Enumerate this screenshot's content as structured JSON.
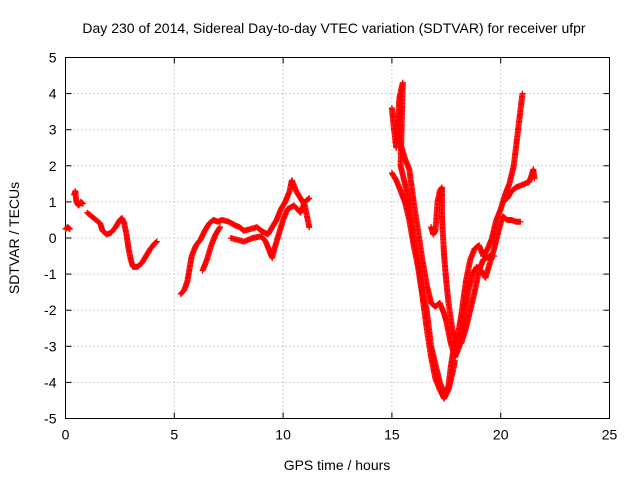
{
  "chart_data": {
    "type": "scatter",
    "title": "Day 230 of 2014, Sidereal Day-to-day VTEC variation (SDTVAR) for receiver ufpr",
    "xlabel": "GPS time / hours",
    "ylabel": "SDTVAR / TECUs",
    "xlim": [
      0,
      25
    ],
    "ylim": [
      -5,
      5
    ],
    "xticks": [
      "0",
      "5",
      "10",
      "15",
      "20",
      "25"
    ],
    "yticks": [
      "-5",
      "-4",
      "-3",
      "-2",
      "-1",
      "0",
      "1",
      "2",
      "3",
      "4",
      "5"
    ],
    "grid": true,
    "marker": "+",
    "color": "#ff0000",
    "series": [
      {
        "name": "SDTVAR",
        "segments": [
          [
            [
              0.0,
              0.25
            ],
            [
              0.1,
              0.3
            ],
            [
              0.2,
              0.25
            ]
          ],
          [
            [
              0.4,
              1.2
            ],
            [
              0.45,
              1.3
            ],
            [
              0.5,
              1.0
            ],
            [
              0.6,
              0.9
            ],
            [
              0.7,
              1.0
            ],
            [
              0.8,
              0.95
            ]
          ],
          [
            [
              1.0,
              0.7
            ],
            [
              1.2,
              0.6
            ],
            [
              1.4,
              0.5
            ],
            [
              1.6,
              0.4
            ],
            [
              1.7,
              0.2
            ],
            [
              1.9,
              0.1
            ],
            [
              2.1,
              0.15
            ],
            [
              2.3,
              0.3
            ],
            [
              2.5,
              0.5
            ],
            [
              2.6,
              0.55
            ],
            [
              2.7,
              0.4
            ],
            [
              2.8,
              0.1
            ],
            [
              2.9,
              -0.3
            ],
            [
              3.0,
              -0.6
            ],
            [
              3.1,
              -0.8
            ],
            [
              3.3,
              -0.8
            ],
            [
              3.5,
              -0.7
            ],
            [
              3.7,
              -0.5
            ],
            [
              3.9,
              -0.3
            ],
            [
              4.1,
              -0.15
            ],
            [
              4.2,
              -0.1
            ]
          ],
          [
            [
              5.3,
              -1.55
            ],
            [
              5.45,
              -1.45
            ],
            [
              5.6,
              -1.2
            ],
            [
              5.8,
              -0.5
            ],
            [
              6.0,
              -0.2
            ],
            [
              6.2,
              -0.05
            ],
            [
              6.4,
              0.2
            ],
            [
              6.6,
              0.4
            ],
            [
              6.8,
              0.5
            ],
            [
              7.0,
              0.45
            ],
            [
              7.2,
              0.5
            ],
            [
              7.5,
              0.45
            ],
            [
              7.8,
              0.35
            ],
            [
              8.0,
              0.3
            ],
            [
              8.2,
              0.2
            ],
            [
              8.5,
              0.25
            ],
            [
              8.8,
              0.3
            ],
            [
              9.0,
              0.2
            ],
            [
              9.3,
              0.1
            ],
            [
              9.5,
              0.3
            ],
            [
              9.7,
              0.5
            ],
            [
              9.9,
              0.8
            ],
            [
              10.1,
              1.0
            ],
            [
              10.3,
              1.3
            ],
            [
              10.4,
              1.6
            ],
            [
              10.6,
              1.3
            ],
            [
              10.8,
              1.1
            ],
            [
              11.0,
              0.9
            ],
            [
              11.1,
              0.6
            ],
            [
              11.2,
              0.3
            ]
          ],
          [
            [
              6.3,
              -0.9
            ],
            [
              6.5,
              -0.6
            ],
            [
              6.7,
              -0.2
            ],
            [
              6.9,
              0.1
            ],
            [
              7.1,
              0.3
            ]
          ],
          [
            [
              7.6,
              0.0
            ],
            [
              7.9,
              -0.05
            ],
            [
              8.2,
              -0.1
            ],
            [
              8.6,
              0.0
            ],
            [
              9.0,
              0.05
            ],
            [
              9.2,
              -0.1
            ],
            [
              9.4,
              -0.4
            ],
            [
              9.5,
              -0.55
            ],
            [
              9.6,
              -0.3
            ],
            [
              9.8,
              0.1
            ],
            [
              10.0,
              0.5
            ],
            [
              10.2,
              0.8
            ],
            [
              10.5,
              0.9
            ],
            [
              10.8,
              0.7
            ],
            [
              11.0,
              1.0
            ],
            [
              11.2,
              1.1
            ]
          ],
          [
            [
              15.0,
              3.6
            ],
            [
              15.1,
              3.0
            ],
            [
              15.2,
              2.5
            ],
            [
              15.35,
              3.9
            ],
            [
              15.5,
              4.3
            ],
            [
              15.4,
              2.0
            ],
            [
              15.6,
              1.5
            ],
            [
              15.8,
              1.0
            ],
            [
              16.0,
              0.0
            ],
            [
              16.2,
              -0.6
            ],
            [
              16.4,
              -1.5
            ],
            [
              16.6,
              -2.0
            ],
            [
              16.8,
              -3.0
            ],
            [
              17.0,
              -3.5
            ],
            [
              17.2,
              -4.0
            ],
            [
              17.4,
              -4.3
            ],
            [
              17.6,
              -4.1
            ],
            [
              17.7,
              -3.6
            ],
            [
              17.8,
              -3.2
            ],
            [
              18.0,
              -2.8
            ],
            [
              18.2,
              -2.1
            ],
            [
              18.4,
              -1.2
            ],
            [
              18.6,
              -0.6
            ],
            [
              18.8,
              -0.3
            ],
            [
              19.0,
              -0.2
            ],
            [
              19.2,
              -0.5
            ],
            [
              19.4,
              -0.3
            ],
            [
              19.6,
              0.0
            ],
            [
              19.8,
              0.5
            ],
            [
              20.0,
              0.8
            ],
            [
              20.2,
              1.2
            ],
            [
              20.4,
              1.5
            ],
            [
              20.6,
              2.0
            ],
            [
              20.8,
              3.0
            ],
            [
              21.0,
              4.0
            ]
          ],
          [
            [
              15.0,
              1.8
            ],
            [
              15.2,
              1.6
            ],
            [
              15.4,
              1.3
            ],
            [
              15.6,
              1.0
            ],
            [
              15.8,
              0.5
            ],
            [
              16.0,
              -0.2
            ],
            [
              16.2,
              -0.8
            ],
            [
              16.4,
              -1.6
            ],
            [
              16.6,
              -2.5
            ],
            [
              16.8,
              -3.3
            ],
            [
              17.0,
              -3.9
            ],
            [
              17.2,
              -4.2
            ],
            [
              17.4,
              -4.45
            ],
            [
              17.6,
              -4.2
            ],
            [
              17.8,
              -3.7
            ],
            [
              17.9,
              -3.4
            ]
          ],
          [
            [
              15.2,
              2.9
            ],
            [
              15.4,
              2.6
            ],
            [
              15.6,
              2.2
            ],
            [
              15.8,
              1.9
            ],
            [
              16.0,
              1.0
            ],
            [
              16.2,
              0.2
            ],
            [
              16.4,
              -0.6
            ],
            [
              16.6,
              -1.3
            ],
            [
              16.8,
              -1.8
            ],
            [
              17.0,
              -1.9
            ],
            [
              17.2,
              -1.8
            ],
            [
              17.4,
              -2.1
            ],
            [
              17.5,
              -2.3
            ],
            [
              17.7,
              -2.9
            ],
            [
              17.9,
              -3.3
            ],
            [
              18.1,
              -3.0
            ],
            [
              18.3,
              -2.2
            ],
            [
              18.5,
              -1.5
            ],
            [
              18.7,
              -1.0
            ],
            [
              18.9,
              -0.8
            ],
            [
              19.1,
              -0.9
            ],
            [
              19.3,
              -1.1
            ],
            [
              19.5,
              -0.7
            ],
            [
              19.7,
              -0.3
            ],
            [
              19.9,
              0.2
            ],
            [
              20.1,
              0.6
            ],
            [
              20.3,
              0.5
            ],
            [
              20.5,
              0.5
            ],
            [
              20.7,
              0.45
            ],
            [
              20.9,
              0.45
            ]
          ],
          [
            [
              16.8,
              0.3
            ],
            [
              16.9,
              0.1
            ],
            [
              17.0,
              0.2
            ],
            [
              17.1,
              1.0
            ],
            [
              17.2,
              1.3
            ],
            [
              17.3,
              1.4
            ],
            [
              17.3,
              0.6
            ],
            [
              17.4,
              -0.5
            ],
            [
              17.5,
              -1.2
            ],
            [
              17.6,
              -1.8
            ],
            [
              17.8,
              -2.6
            ],
            [
              18.0,
              -3.0
            ],
            [
              18.2,
              -2.9
            ],
            [
              18.4,
              -2.5
            ],
            [
              18.6,
              -2.0
            ],
            [
              18.8,
              -1.5
            ],
            [
              19.0,
              -0.9
            ],
            [
              19.2,
              -0.6
            ],
            [
              19.5,
              -0.5
            ],
            [
              19.7,
              -0.5
            ]
          ],
          [
            [
              20.1,
              1.0
            ],
            [
              20.3,
              1.1
            ],
            [
              20.5,
              1.3
            ],
            [
              20.7,
              1.4
            ],
            [
              20.9,
              1.45
            ],
            [
              21.1,
              1.5
            ],
            [
              21.3,
              1.55
            ],
            [
              21.4,
              1.7
            ],
            [
              21.5,
              1.9
            ],
            [
              21.55,
              1.65
            ]
          ]
        ]
      }
    ]
  }
}
